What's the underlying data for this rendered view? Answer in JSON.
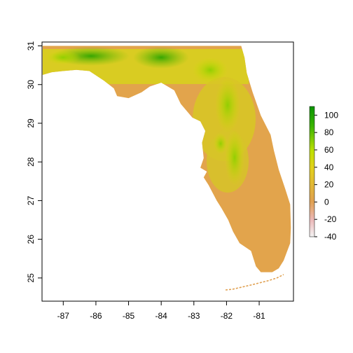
{
  "chart_data": {
    "type": "heatmap",
    "title": "",
    "xlabel": "",
    "ylabel": "",
    "xlim": [
      -87.65,
      -79.95
    ],
    "ylim": [
      24.4,
      31.1
    ],
    "x_ticks": [
      "-87",
      "-86",
      "-85",
      "-84",
      "-83",
      "-82",
      "-81"
    ],
    "y_ticks": [
      "25",
      "26",
      "27",
      "28",
      "29",
      "30",
      "31"
    ],
    "legend": {
      "position": "right",
      "range": [
        -40,
        110
      ],
      "ticks": [
        "100",
        "80",
        "60",
        "40",
        "20",
        "0",
        "-20",
        "-40"
      ],
      "colors": [
        "#f2f2f2",
        "#ebb3b3",
        "#e0a060",
        "#e6c220",
        "#c8e000",
        "#3fb800",
        "#0a9a00"
      ]
    }
  }
}
